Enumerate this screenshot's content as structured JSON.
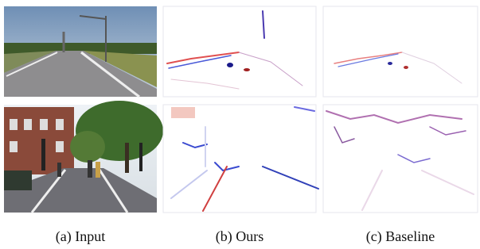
{
  "captions": [
    "(a) Input",
    "(b) Ours",
    "(c) Baseline"
  ]
}
